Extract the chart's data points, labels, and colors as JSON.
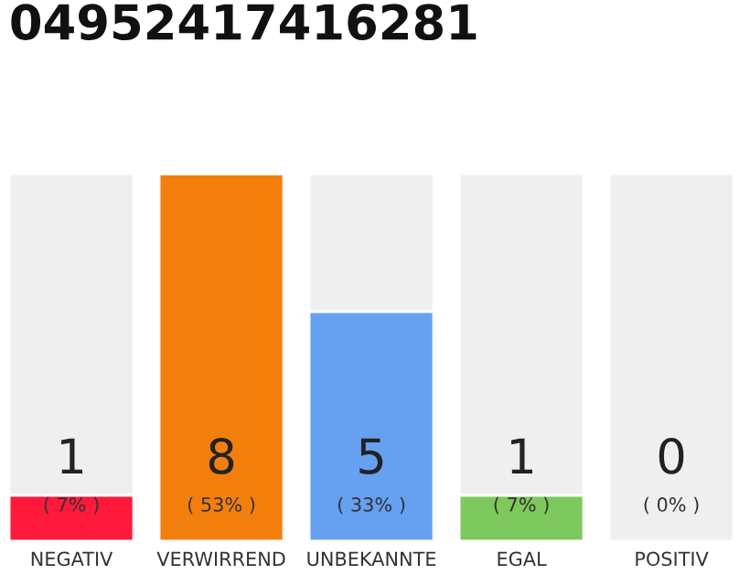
{
  "chart_data": {
    "type": "bar",
    "title": "04952417416281",
    "stacked": true,
    "categories": [
      "NEGATIV",
      "VERWIRREND",
      "UNBEKANNTE",
      "EGAL",
      "POSITIV"
    ],
    "series": [
      {
        "values": [
          1,
          8,
          5,
          1,
          0
        ],
        "colors": [
          "#ff1a3c",
          "#f27f0c",
          "#66a0f0",
          "#7dc95e",
          "#efefef"
        ],
        "value_labels": [
          "1\n( 7% )",
          "8\n( 53% )",
          "5\n( 33% )",
          "1\n( 7% )",
          "0\n( 0% )"
        ]
      },
      {
        "values": [
          7,
          0,
          3,
          7,
          8
        ],
        "color": "#efefef"
      }
    ],
    "legend": false
  }
}
